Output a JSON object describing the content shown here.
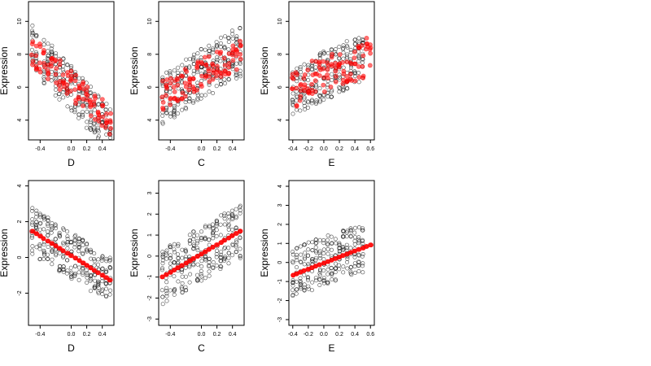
{
  "chart_data": [
    {
      "type": "scatter",
      "xlabel": "D",
      "ylabel": "Expression",
      "xlim": [
        -0.55,
        0.55
      ],
      "ylim": [
        2.8,
        11.2
      ],
      "xticks": [
        -0.4,
        0.0,
        0.2,
        0.4
      ],
      "yticks": [
        4,
        6,
        8,
        10
      ],
      "ytick_rotated": true,
      "series": [
        {
          "marker": "open-circle",
          "color": "#000000",
          "x_columns": [
            -0.5,
            -0.45,
            -0.35,
            -0.3,
            -0.25,
            -0.2,
            -0.15,
            -0.1,
            -0.05,
            0.0,
            0.05,
            0.1,
            0.15,
            0.2,
            0.25,
            0.3,
            0.35,
            0.4,
            0.45,
            0.5
          ],
          "y_start": 8.6,
          "y_slope": -5.4,
          "y_spread": 1.4,
          "points_per_column": 12
        },
        {
          "marker": "filled-circle",
          "color": "#ff0000",
          "x_columns": [
            -0.5,
            -0.45,
            -0.4,
            -0.35,
            -0.3,
            -0.25,
            -0.2,
            -0.15,
            -0.1,
            -0.05,
            0.0,
            0.05,
            0.1,
            0.15,
            0.2,
            0.25,
            0.3,
            0.35,
            0.4,
            0.45,
            0.5
          ],
          "y_start": 8.4,
          "y_slope": -4.6,
          "y_spread": 0.9,
          "points_per_column": 5
        }
      ]
    },
    {
      "type": "scatter",
      "xlabel": "C",
      "ylabel": "Expression",
      "xlim": [
        -0.55,
        0.55
      ],
      "ylim": [
        2.8,
        11.2
      ],
      "xticks": [
        -0.4,
        0.0,
        0.2,
        0.4
      ],
      "yticks": [
        4,
        6,
        8,
        10
      ],
      "ytick_rotated": true,
      "series": [
        {
          "marker": "open-circle",
          "color": "#000000",
          "x_columns": [
            -0.5,
            -0.45,
            -0.4,
            -0.35,
            -0.3,
            -0.25,
            -0.2,
            -0.15,
            -0.1,
            -0.05,
            0.0,
            0.05,
            0.1,
            0.15,
            0.2,
            0.25,
            0.3,
            0.35,
            0.4,
            0.45,
            0.5
          ],
          "y_start": 5.2,
          "y_slope": 3.2,
          "y_spread": 1.6,
          "points_per_column": 12
        },
        {
          "marker": "filled-circle",
          "color": "#ff0000",
          "x_columns": [
            -0.5,
            -0.45,
            -0.4,
            -0.35,
            -0.3,
            -0.25,
            -0.2,
            -0.15,
            -0.1,
            -0.05,
            0.0,
            0.05,
            0.1,
            0.15,
            0.2,
            0.25,
            0.3,
            0.35,
            0.4,
            0.45,
            0.5
          ],
          "y_start": 5.4,
          "y_slope": 2.8,
          "y_spread": 0.9,
          "points_per_column": 5
        }
      ]
    },
    {
      "type": "scatter",
      "xlabel": "E",
      "ylabel": "Expression",
      "xlim": [
        -0.45,
        0.65
      ],
      "ylim": [
        2.8,
        11.2
      ],
      "xticks": [
        -0.4,
        -0.2,
        0.0,
        0.2,
        0.4,
        0.6
      ],
      "yticks": [
        4,
        6,
        8,
        10
      ],
      "ytick_rotated": true,
      "series": [
        {
          "marker": "open-circle",
          "color": "#000000",
          "x_columns": [
            -0.4,
            -0.35,
            -0.3,
            -0.25,
            -0.2,
            -0.15,
            -0.1,
            -0.05,
            0.0,
            0.05,
            0.1,
            0.15,
            0.2,
            0.25,
            0.3,
            0.35,
            0.4,
            0.45,
            0.5
          ],
          "y_start": 5.7,
          "y_slope": 2.4,
          "y_spread": 1.5,
          "points_per_column": 12
        },
        {
          "marker": "filled-circle",
          "color": "#ff0000",
          "x_columns": [
            -0.4,
            -0.35,
            -0.3,
            -0.25,
            -0.2,
            -0.15,
            -0.1,
            -0.05,
            0.0,
            0.05,
            0.1,
            0.15,
            0.2,
            0.25,
            0.3,
            0.35,
            0.4,
            0.45,
            0.5,
            0.55,
            0.6
          ],
          "y_start": 5.8,
          "y_slope": 2.2,
          "y_spread": 1.2,
          "points_per_column": 5
        }
      ]
    },
    {
      "type": "scatter",
      "xlabel": "D",
      "ylabel": "Expression",
      "xlim": [
        -0.55,
        0.55
      ],
      "ylim": [
        -3.8,
        4.3
      ],
      "xticks": [
        -0.4,
        0.0,
        0.2,
        0.4
      ],
      "yticks": [
        -2,
        0,
        2,
        4
      ],
      "ytick_rotated": true,
      "series": [
        {
          "marker": "open-circle",
          "color": "#000000",
          "x_columns": [
            -0.5,
            -0.45,
            -0.4,
            -0.35,
            -0.3,
            -0.25,
            -0.2,
            -0.15,
            -0.1,
            -0.05,
            0.0,
            0.05,
            0.1,
            0.15,
            0.2,
            0.25,
            0.3,
            0.35,
            0.4,
            0.45,
            0.5
          ],
          "y_start": 1.6,
          "y_slope": -3.0,
          "y_spread": 1.3,
          "points_per_column": 12
        },
        {
          "marker": "filled-circle",
          "color": "#ff0000",
          "x_columns": [
            -0.5,
            -0.45,
            -0.4,
            -0.35,
            -0.3,
            -0.25,
            -0.2,
            -0.15,
            -0.1,
            -0.05,
            0.0,
            0.05,
            0.1,
            0.15,
            0.2,
            0.25,
            0.3,
            0.35,
            0.4,
            0.45,
            0.5
          ],
          "y_start": 1.6,
          "y_slope": -3.0,
          "y_spread": 0.0,
          "points_per_column": 3
        }
      ]
    },
    {
      "type": "scatter",
      "xlabel": "C",
      "ylabel": "Expression",
      "xlim": [
        -0.55,
        0.55
      ],
      "ylim": [
        -3.3,
        3.6
      ],
      "xticks": [
        -0.4,
        0.0,
        0.2,
        0.4
      ],
      "yticks": [
        -3,
        -2,
        -1,
        0,
        1,
        2,
        3
      ],
      "ytick_rotated": true,
      "series": [
        {
          "marker": "open-circle",
          "color": "#000000",
          "x_columns": [
            -0.5,
            -0.45,
            -0.4,
            -0.35,
            -0.3,
            -0.25,
            -0.2,
            -0.15,
            -0.1,
            -0.05,
            0.0,
            0.05,
            0.1,
            0.15,
            0.2,
            0.25,
            0.3,
            0.35,
            0.4,
            0.45,
            0.5
          ],
          "y_start": -1.1,
          "y_slope": 2.4,
          "y_spread": 1.3,
          "points_per_column": 12
        },
        {
          "marker": "filled-circle",
          "color": "#ff0000",
          "x_columns": [
            -0.5,
            -0.45,
            -0.4,
            -0.35,
            -0.3,
            -0.25,
            -0.2,
            -0.15,
            -0.1,
            -0.05,
            0.0,
            0.05,
            0.1,
            0.15,
            0.2,
            0.25,
            0.3,
            0.35,
            0.4,
            0.45,
            0.5
          ],
          "y_start": -1.1,
          "y_slope": 2.4,
          "y_spread": 0.0,
          "points_per_column": 3
        }
      ]
    },
    {
      "type": "scatter",
      "xlabel": "E",
      "ylabel": "Expression",
      "xlim": [
        -0.45,
        0.65
      ],
      "ylim": [
        -3.3,
        4.3
      ],
      "xticks": [
        -0.4,
        -0.2,
        0.0,
        0.2,
        0.4,
        0.6
      ],
      "yticks": [
        -3,
        -2,
        -1,
        0,
        1,
        2,
        3,
        4
      ],
      "ytick_rotated": true,
      "series": [
        {
          "marker": "open-circle",
          "color": "#000000",
          "x_columns": [
            -0.4,
            -0.35,
            -0.3,
            -0.25,
            -0.2,
            -0.15,
            -0.1,
            -0.05,
            0.0,
            0.05,
            0.1,
            0.15,
            0.2,
            0.25,
            0.3,
            0.35,
            0.4,
            0.45,
            0.5
          ],
          "y_start": -0.6,
          "y_slope": 1.6,
          "y_spread": 1.3,
          "points_per_column": 12
        },
        {
          "marker": "filled-circle",
          "color": "#ff0000",
          "x_columns": [
            -0.4,
            -0.35,
            -0.3,
            -0.25,
            -0.2,
            -0.15,
            -0.1,
            -0.05,
            0.0,
            0.05,
            0.1,
            0.15,
            0.2,
            0.25,
            0.3,
            0.35,
            0.4,
            0.45,
            0.5,
            0.55,
            0.6
          ],
          "y_start": -0.75,
          "y_slope": 1.75,
          "y_spread": 0.0,
          "points_per_column": 3
        }
      ]
    }
  ]
}
